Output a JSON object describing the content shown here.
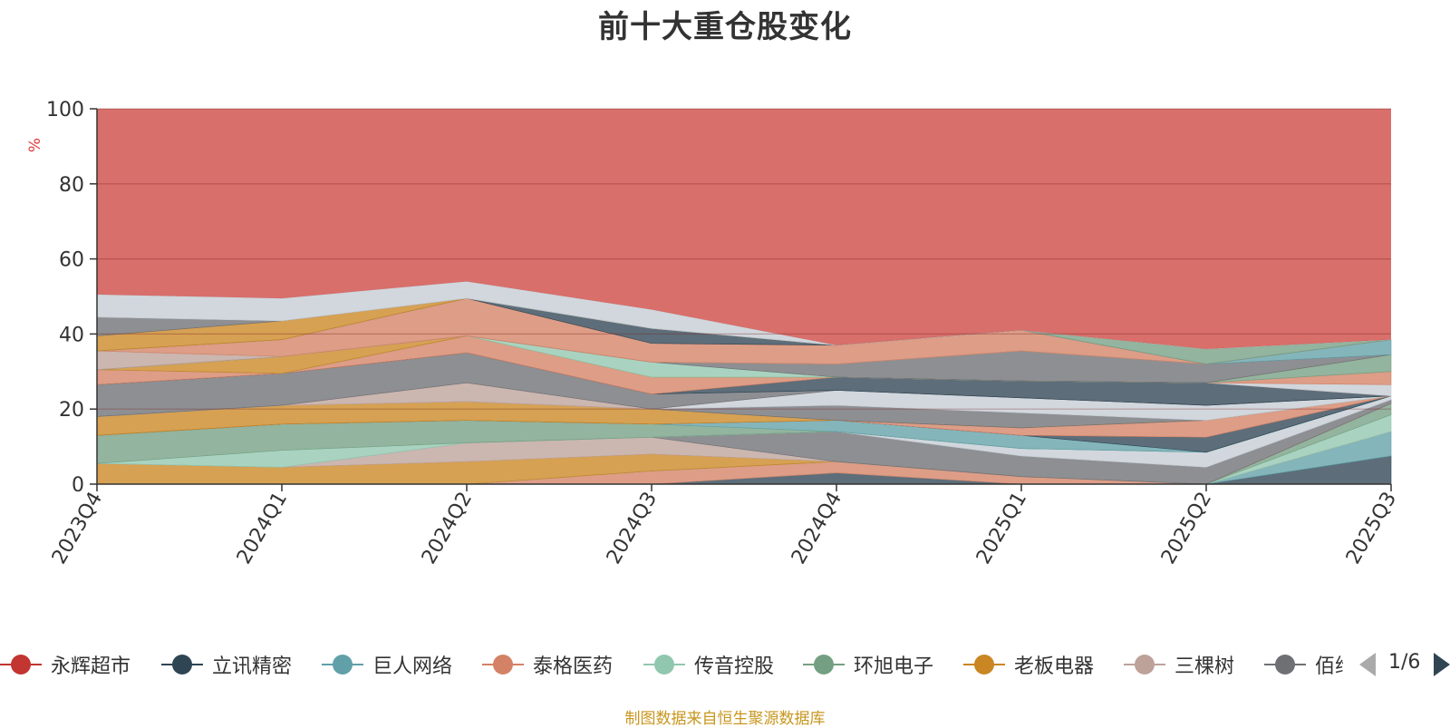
{
  "chart_data": {
    "type": "area",
    "stacked": true,
    "title": "前十大重仓股变化",
    "ylabel": "%",
    "ylim": [
      0,
      100
    ],
    "yticks": [
      0,
      20,
      40,
      60,
      80,
      100
    ],
    "grid": true,
    "legend_position": "bottom",
    "categories": [
      "2023Q4",
      "2024Q1",
      "2024Q2",
      "2024Q3",
      "2024Q4",
      "2025Q1",
      "2025Q2",
      "2025Q3"
    ],
    "layers": [
      {
        "name": "",
        "color": "#2f4554",
        "values": [
          0,
          0,
          0,
          0,
          3,
          0,
          0,
          7.5
        ]
      },
      {
        "name": "",
        "color": "#61a0a8",
        "values": [
          0,
          0,
          0,
          0,
          0,
          0,
          0,
          6.5
        ]
      },
      {
        "name": "",
        "color": "#d48265",
        "values": [
          0,
          0,
          0,
          3.5,
          3,
          2,
          0,
          0
        ]
      },
      {
        "name": "",
        "color": "#91c7ae",
        "values": [
          0,
          0,
          0,
          0,
          0,
          0,
          0,
          4.5
        ]
      },
      {
        "name": "",
        "color": "#749f83",
        "values": [
          0,
          0,
          0,
          0,
          0,
          0,
          0,
          3
        ]
      },
      {
        "name": "",
        "color": "#ca8622",
        "values": [
          5.5,
          4.5,
          6,
          4.5,
          0,
          0,
          0,
          0
        ]
      },
      {
        "name": "",
        "color": "#bda29a",
        "values": [
          0,
          0,
          5,
          4.5,
          0,
          0,
          0,
          0
        ]
      },
      {
        "name": "",
        "color": "#6e7074",
        "values": [
          0,
          0,
          0,
          0,
          8,
          5.5,
          4.5,
          1
        ]
      },
      {
        "name": "",
        "color": "#c4ccd3",
        "values": [
          0,
          0,
          0,
          0,
          0,
          2,
          4,
          1
        ]
      },
      {
        "name": "",
        "color": "#91c7ae",
        "values": [
          0,
          4.5,
          0,
          0,
          0,
          0,
          0,
          0
        ]
      },
      {
        "name": "",
        "color": "#749f83",
        "values": [
          7.5,
          7,
          6,
          3.5,
          0,
          0,
          0,
          0
        ]
      },
      {
        "name": "",
        "color": "#61a0a8",
        "values": [
          0,
          0,
          0,
          0,
          3,
          3.5,
          0,
          0
        ]
      },
      {
        "name": "",
        "color": "#2f4554",
        "values": [
          0,
          0,
          0,
          0,
          0,
          0,
          4,
          0
        ]
      },
      {
        "name": "",
        "color": "#d48265",
        "values": [
          0,
          0,
          0,
          0,
          0,
          2,
          4.5,
          0
        ]
      },
      {
        "name": "",
        "color": "#ca8622",
        "values": [
          5,
          5,
          5,
          4,
          0,
          0,
          0,
          0
        ]
      },
      {
        "name": "",
        "color": "#6e7074",
        "values": [
          0,
          0,
          0,
          0,
          4,
          4,
          0,
          0
        ]
      },
      {
        "name": "",
        "color": "#c4ccd3",
        "values": [
          0,
          0,
          0,
          0,
          4,
          4,
          4,
          0
        ]
      },
      {
        "name": "",
        "color": "#bda29a",
        "values": [
          0,
          0,
          5,
          0,
          0,
          0,
          0,
          0
        ]
      },
      {
        "name": "",
        "color": "#6e7074",
        "values": [
          8.5,
          8.5,
          8,
          4,
          0,
          0,
          0,
          0
        ]
      },
      {
        "name": "",
        "color": "#2f4554",
        "values": [
          0,
          0,
          0,
          0,
          3.5,
          4.5,
          6,
          0
        ]
      },
      {
        "name": "",
        "color": "#d48265",
        "values": [
          4,
          0,
          4.5,
          4.5,
          0,
          0,
          0,
          0
        ]
      },
      {
        "name": "",
        "color": "#c4ccd3",
        "values": [
          0,
          0,
          0,
          0,
          0,
          0,
          0,
          3
        ]
      },
      {
        "name": "",
        "color": "#d48265",
        "values": [
          0,
          0,
          0,
          0,
          0,
          0,
          0,
          3.5
        ]
      },
      {
        "name": "",
        "color": "#749f83",
        "values": [
          0,
          0,
          0,
          0,
          0,
          0,
          0,
          4.5
        ]
      },
      {
        "name": "",
        "color": "#ca8622",
        "values": [
          0,
          4.5,
          0,
          0,
          0,
          0,
          0,
          0
        ]
      },
      {
        "name": "",
        "color": "#91c7ae",
        "values": [
          0,
          0,
          0,
          4,
          0,
          0,
          0,
          0
        ]
      },
      {
        "name": "",
        "color": "#6e7074",
        "values": [
          0,
          0,
          0,
          0,
          3.5,
          8,
          5,
          0
        ]
      },
      {
        "name": "",
        "color": "#61a0a8",
        "values": [
          0,
          0,
          0,
          0,
          0,
          0,
          0,
          4
        ]
      },
      {
        "name": "",
        "color": "#bda29a",
        "values": [
          5,
          0,
          0,
          0,
          0,
          0,
          0,
          0
        ]
      },
      {
        "name": "",
        "color": "#d48265",
        "values": [
          0,
          4.5,
          10,
          5,
          5,
          5.5,
          0,
          0
        ]
      },
      {
        "name": "",
        "color": "#2f4554",
        "values": [
          0,
          0,
          0,
          4,
          0,
          0,
          0,
          0
        ]
      },
      {
        "name": "",
        "color": "#bda29a",
        "values": [
          0,
          0,
          0,
          0,
          0,
          0,
          0,
          0
        ]
      },
      {
        "name": "",
        "color": "#749f83",
        "values": [
          0,
          0,
          0,
          0,
          0,
          0,
          4,
          0
        ]
      },
      {
        "name": "",
        "color": "#ca8622",
        "values": [
          4,
          5,
          0,
          0,
          0,
          0,
          0,
          0
        ]
      },
      {
        "name": "",
        "color": "#6e7074",
        "values": [
          5,
          0,
          0,
          0,
          0,
          0,
          0,
          0
        ]
      },
      {
        "name": "",
        "color": "#c4ccd3",
        "values": [
          6,
          6,
          4.5,
          5,
          0,
          0,
          0,
          0
        ]
      }
    ],
    "top_series": {
      "name": "",
      "color": "#d35b57"
    },
    "legend": [
      {
        "name": "永辉超市",
        "color": "#c23531"
      },
      {
        "name": "立讯精密",
        "color": "#2f4554"
      },
      {
        "name": "巨人网络",
        "color": "#61a0a8"
      },
      {
        "name": "泰格医药",
        "color": "#d48265"
      },
      {
        "name": "传音控股",
        "color": "#91c7ae"
      },
      {
        "name": "环旭电子",
        "color": "#749f83"
      },
      {
        "name": "老板电器",
        "color": "#ca8622"
      },
      {
        "name": "三棵树",
        "color": "#bda29a"
      },
      {
        "name": "佰维存储",
        "color": "#6e7074"
      }
    ],
    "legend_page": "1/6"
  },
  "footer": {
    "source_note": "制图数据来自恒生聚源数据库"
  }
}
